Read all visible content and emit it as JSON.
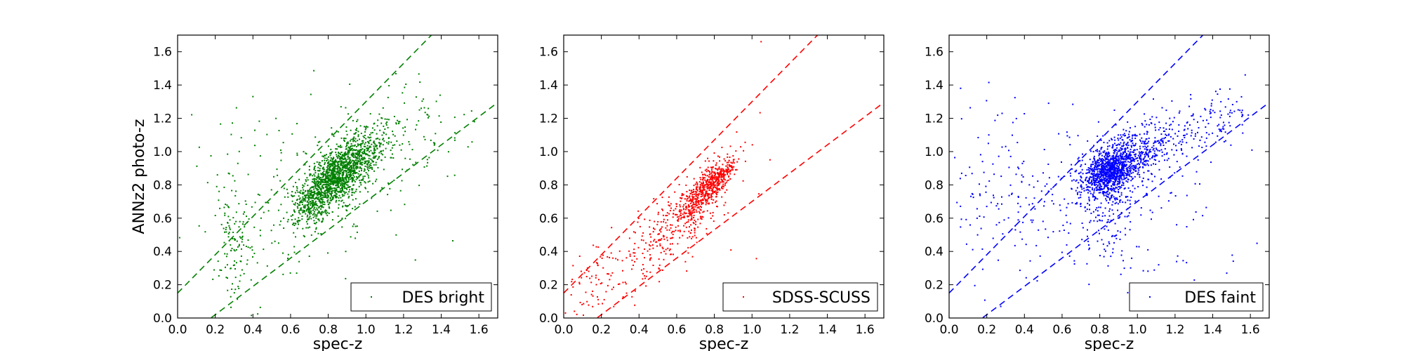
{
  "chart_data": [
    {
      "type": "scatter",
      "color": "#008000",
      "xlabel": "spec-z",
      "ylabel": "ANNz2 photo-z",
      "xlim": [
        0.0,
        1.7
      ],
      "ylim": [
        0.0,
        1.7
      ],
      "xticks": [
        "0.0",
        "0.2",
        "0.4",
        "0.6",
        "0.8",
        "1.0",
        "1.2",
        "1.4",
        "1.6"
      ],
      "yticks": [
        "0.0",
        "0.2",
        "0.4",
        "0.6",
        "0.8",
        "1.0",
        "1.2",
        "1.4",
        "1.6"
      ],
      "grid": false,
      "legend": {
        "entry": "DES bright",
        "placement": "lower-right"
      },
      "reference_lines": [
        {
          "style": "dashed",
          "slope": 1.15,
          "intercept": 0.15
        },
        {
          "style": "dashed",
          "slope": 0.85,
          "intercept": -0.15
        }
      ],
      "point_groups": [
        {
          "x_center": 0.85,
          "y_center": 0.85,
          "x_spread": 0.09,
          "y_spread": 0.08,
          "slope": 0.75,
          "count": 1100
        },
        {
          "x_center": 0.98,
          "y_center": 1.0,
          "x_spread": 0.11,
          "y_spread": 0.08,
          "slope": 0.5,
          "count": 260
        },
        {
          "x_center": 0.72,
          "y_center": 0.72,
          "x_spread": 0.07,
          "y_spread": 0.08,
          "slope": 0.8,
          "count": 240
        },
        {
          "x_center": 0.85,
          "y_center": 0.85,
          "x_spread": 0.22,
          "y_spread": 0.2,
          "slope": 0.6,
          "count": 230
        },
        {
          "x_center": 0.3,
          "y_center": 0.45,
          "x_spread": 0.05,
          "y_spread": 0.2,
          "slope": 0.0,
          "count": 120
        },
        {
          "x_center": 0.45,
          "y_center": 0.8,
          "x_spread": 0.35,
          "y_spread": 0.3,
          "slope": 0.0,
          "count": 90
        },
        {
          "x_center": 1.3,
          "y_center": 1.12,
          "x_spread": 0.17,
          "y_spread": 0.12,
          "slope": 0.0,
          "count": 60
        }
      ]
    },
    {
      "type": "scatter",
      "color": "#ff0000",
      "xlabel": "spec-z",
      "ylabel": "",
      "xlim": [
        0.0,
        1.7
      ],
      "ylim": [
        0.0,
        1.7
      ],
      "xticks": [
        "0.0",
        "0.2",
        "0.4",
        "0.6",
        "0.8",
        "1.0",
        "1.2",
        "1.4",
        "1.6"
      ],
      "yticks": [
        "0.0",
        "0.2",
        "0.4",
        "0.6",
        "0.8",
        "1.0",
        "1.2",
        "1.4",
        "1.6"
      ],
      "grid": false,
      "legend": {
        "entry": "SDSS-SCUSS",
        "placement": "lower-right"
      },
      "reference_lines": [
        {
          "style": "dashed",
          "slope": 1.15,
          "intercept": 0.15
        },
        {
          "style": "dashed",
          "slope": 0.85,
          "intercept": -0.15
        }
      ],
      "point_groups": [
        {
          "x_center": 0.8,
          "y_center": 0.83,
          "x_spread": 0.06,
          "y_spread": 0.05,
          "slope": 0.9,
          "count": 380
        },
        {
          "x_center": 0.7,
          "y_center": 0.68,
          "x_spread": 0.07,
          "y_spread": 0.07,
          "slope": 0.9,
          "count": 280
        },
        {
          "x_center": 0.5,
          "y_center": 0.48,
          "x_spread": 0.15,
          "y_spread": 0.12,
          "slope": 0.9,
          "count": 230
        },
        {
          "x_center": 0.15,
          "y_center": 0.2,
          "x_spread": 0.08,
          "y_spread": 0.12,
          "slope": 0.6,
          "count": 60
        },
        {
          "x_center": 0.7,
          "y_center": 0.7,
          "x_spread": 0.3,
          "y_spread": 0.3,
          "slope": 0.6,
          "count": 25
        }
      ]
    },
    {
      "type": "scatter",
      "color": "#0000ff",
      "xlabel": "spec-z",
      "ylabel": "",
      "xlim": [
        0.0,
        1.7
      ],
      "ylim": [
        0.0,
        1.7
      ],
      "xticks": [
        "0.0",
        "0.2",
        "0.4",
        "0.6",
        "0.8",
        "1.0",
        "1.2",
        "1.4",
        "1.6"
      ],
      "yticks": [
        "0.0",
        "0.2",
        "0.4",
        "0.6",
        "0.8",
        "1.0",
        "1.2",
        "1.4",
        "1.6"
      ],
      "grid": false,
      "legend": {
        "entry": "DES faint",
        "placement": "lower-right"
      },
      "reference_lines": [
        {
          "style": "dashed",
          "slope": 1.15,
          "intercept": 0.15
        },
        {
          "style": "dashed",
          "slope": 0.85,
          "intercept": -0.15
        }
      ],
      "point_groups": [
        {
          "x_center": 0.85,
          "y_center": 0.88,
          "x_spread": 0.07,
          "y_spread": 0.07,
          "slope": 0.4,
          "count": 900
        },
        {
          "x_center": 1.0,
          "y_center": 0.98,
          "x_spread": 0.12,
          "y_spread": 0.09,
          "slope": 0.4,
          "count": 350
        },
        {
          "x_center": 0.85,
          "y_center": 0.7,
          "x_spread": 0.08,
          "y_spread": 0.15,
          "slope": 0.0,
          "count": 150
        },
        {
          "x_center": 0.9,
          "y_center": 0.85,
          "x_spread": 0.25,
          "y_spread": 0.2,
          "slope": 0.3,
          "count": 200
        },
        {
          "x_center": 1.35,
          "y_center": 1.15,
          "x_spread": 0.13,
          "y_spread": 0.1,
          "slope": 0.3,
          "count": 120
        },
        {
          "x_center": 0.3,
          "y_center": 0.8,
          "x_spread": 0.2,
          "y_spread": 0.25,
          "slope": 0.0,
          "count": 140
        },
        {
          "x_center": 0.85,
          "y_center": 0.4,
          "x_spread": 0.4,
          "y_spread": 0.12,
          "slope": 0.0,
          "count": 40
        }
      ]
    }
  ]
}
